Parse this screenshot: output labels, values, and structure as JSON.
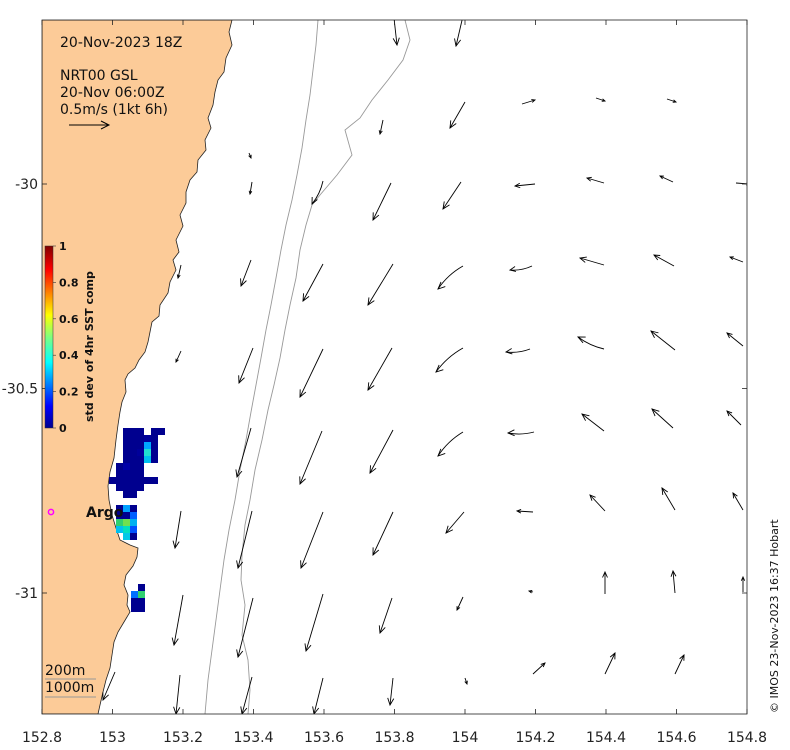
{
  "map": {
    "date_label": "20-Nov-2023 18Z",
    "product_line1": "NRT00 GSL",
    "product_line2": "20-Nov 06:00Z",
    "scale_label": "0.5m/s (1kt 6h)",
    "argo_label": "Argo",
    "depth_label_1": "200m",
    "depth_label_2": "1000m",
    "credit": "© IMOS 23-Nov-2023 16:37 Hobart",
    "colors": {
      "land": "#FCCB98",
      "ocean": "#FFFFFF",
      "argo_marker": "#FF00FF"
    }
  },
  "x_axis": {
    "ticks": [
      "152.8",
      "153",
      "153.2",
      "153.4",
      "153.6",
      "153.8",
      "154",
      "154.2",
      "154.4",
      "154.6",
      "154.8"
    ],
    "values": [
      152.8,
      153.0,
      153.2,
      153.4,
      153.6,
      153.8,
      154.0,
      154.2,
      154.4,
      154.6,
      154.8
    ]
  },
  "y_axis": {
    "ticks": [
      "-30",
      "-30.5",
      "-31"
    ],
    "values": [
      -30.0,
      -30.5,
      -31.0
    ]
  },
  "colorbar": {
    "title": "std dev of 4hr SST comp",
    "ticks": [
      "1",
      "0.8",
      "0.6",
      "0.4",
      "0.2",
      "0"
    ],
    "values": [
      1,
      0.8,
      0.6,
      0.4,
      0.2,
      0
    ]
  }
}
